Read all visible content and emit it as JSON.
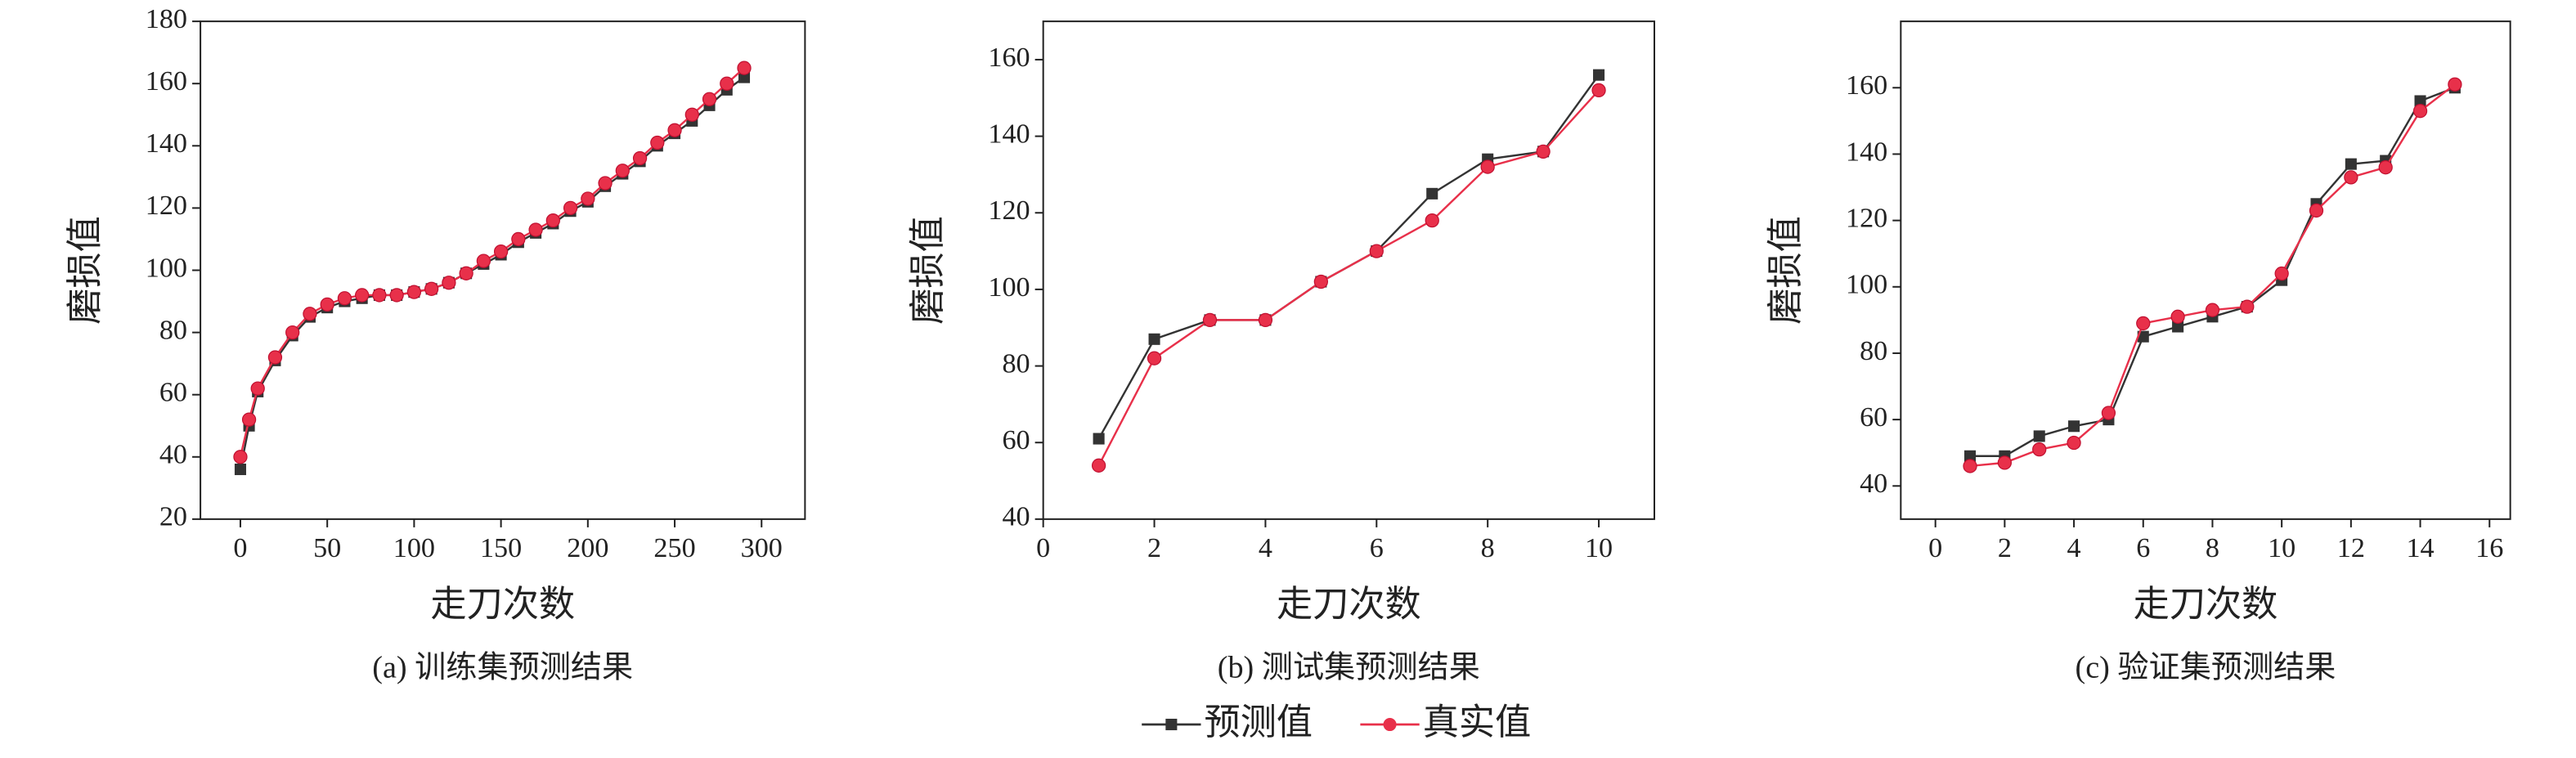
{
  "chart_data": [
    {
      "type": "line",
      "caption": "(a) 训练集预测结果",
      "xlabel": "走刀次数",
      "ylabel": "磨损值",
      "x": [
        0,
        5,
        10,
        20,
        30,
        40,
        50,
        60,
        70,
        80,
        90,
        100,
        110,
        120,
        130,
        140,
        150,
        160,
        170,
        180,
        190,
        200,
        210,
        220,
        230,
        240,
        250,
        260,
        270,
        280,
        290
      ],
      "series": [
        {
          "name": "预测值",
          "color": "#333333",
          "marker": "square",
          "values": [
            36,
            50,
            61,
            71,
            79,
            85,
            88,
            90,
            91,
            92,
            92,
            93,
            94,
            96,
            99,
            102,
            105,
            109,
            112,
            115,
            119,
            122,
            127,
            131,
            135,
            140,
            144,
            148,
            153,
            158,
            162
          ]
        },
        {
          "name": "真实值",
          "color": "#e8304a",
          "marker": "circle",
          "values": [
            40,
            52,
            62,
            72,
            80,
            86,
            89,
            91,
            92,
            92,
            92,
            93,
            94,
            96,
            99,
            103,
            106,
            110,
            113,
            116,
            120,
            123,
            128,
            132,
            136,
            141,
            145,
            150,
            155,
            160,
            165
          ]
        }
      ],
      "xlim": [
        -23,
        325
      ],
      "xticks": [
        0,
        50,
        100,
        150,
        200,
        250,
        300
      ],
      "ylim": [
        20,
        180
      ],
      "yticks": [
        20,
        40,
        60,
        80,
        100,
        120,
        140,
        160,
        180
      ]
    },
    {
      "type": "line",
      "caption": "(b) 测试集预测结果",
      "xlabel": "走刀次数",
      "ylabel": "磨损值",
      "x": [
        1,
        2,
        3,
        4,
        5,
        6,
        7,
        8,
        9,
        10
      ],
      "series": [
        {
          "name": "预测值",
          "color": "#333333",
          "marker": "square",
          "values": [
            61,
            87,
            92,
            92,
            102,
            110,
            125,
            134,
            136,
            156
          ]
        },
        {
          "name": "真实值",
          "color": "#e8304a",
          "marker": "circle",
          "values": [
            54,
            82,
            92,
            92,
            102,
            110,
            118,
            132,
            136,
            152
          ]
        }
      ],
      "xlim": [
        0,
        11
      ],
      "xticks": [
        0,
        2,
        4,
        6,
        8,
        10
      ],
      "ylim": [
        40,
        170
      ],
      "yticks": [
        40,
        60,
        80,
        100,
        120,
        140,
        160
      ]
    },
    {
      "type": "line",
      "caption": "(c) 验证集预测结果",
      "xlabel": "走刀次数",
      "ylabel": "磨损值",
      "x": [
        1,
        2,
        3,
        4,
        5,
        6,
        7,
        8,
        9,
        10,
        11,
        12,
        13,
        14,
        15
      ],
      "series": [
        {
          "name": "预测值",
          "color": "#333333",
          "marker": "square",
          "values": [
            49,
            49,
            55,
            58,
            60,
            85,
            88,
            91,
            94,
            102,
            125,
            137,
            138,
            156,
            160
          ]
        },
        {
          "name": "真实值",
          "color": "#e8304a",
          "marker": "circle",
          "values": [
            46,
            47,
            51,
            53,
            62,
            89,
            91,
            93,
            94,
            104,
            123,
            133,
            136,
            153,
            161
          ]
        }
      ],
      "xlim": [
        -1,
        16.6
      ],
      "xticks": [
        0,
        2,
        4,
        6,
        8,
        10,
        12,
        14,
        16
      ],
      "ylim": [
        30,
        180
      ],
      "yticks": [
        40,
        60,
        80,
        100,
        120,
        140,
        160
      ]
    }
  ]
}
